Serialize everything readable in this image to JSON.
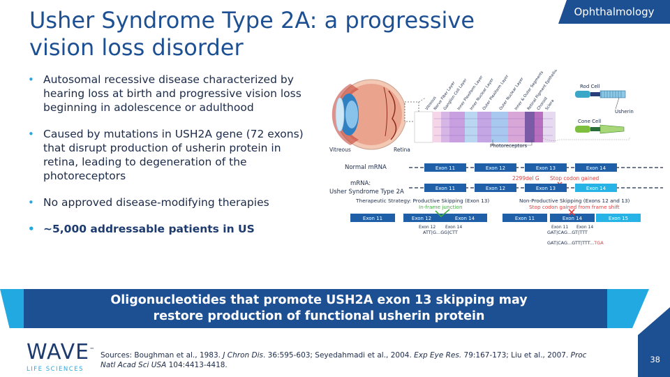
{
  "section_tag": "Ophthalmology",
  "title": "Usher Syndrome Type 2A: a progressive vision loss disorder",
  "bullets": [
    "Autosomal recessive disease characterized by hearing loss at birth and progressive vision loss beginning in adolescence or adulthood",
    "Caused by mutations in USH2A gene (72 exons) that disrupt production of usherin protein in retina, leading to degeneration of the photoreceptors",
    "No approved disease-modifying therapies",
    "~5,000 addressable patients in US"
  ],
  "diagram": {
    "eye_labels": {
      "vitreous": "Vitreous",
      "retina": "Retina"
    },
    "layer_labels": [
      "Vitreous",
      "Nerve Fiber Layer",
      "Ganglion Cell Layer",
      "Inner Plexiform Layer",
      "Inner Nuclear Layer",
      "Outer Plexiform Layer",
      "Outer Nuclear Layer",
      "Inner & Outer Segments",
      "Retinal Pigment Epithelium",
      "Choroid",
      "Sclera"
    ],
    "photoreceptors_label": "Photoreceptors",
    "rod_cell": "Rod Cell",
    "cone_cell": "Cone Cell",
    "usherin": "Usherin",
    "normal_mrna_label": "Normal mRNA",
    "normal_exons": [
      "Exon 11",
      "Exon 12",
      "Exon 13",
      "Exon 14"
    ],
    "mutation_label": "2299del G",
    "stop_codon_label": "Stop codon gained",
    "mrna_label_line1": "mRNA:",
    "mrna_label_line2": "Usher Syndrome Type 2A",
    "usher_exons": [
      "Exon 11",
      "Exon 12",
      "Exon 13",
      "Exon 14"
    ],
    "productive_title": "Therapeutic Strategy: Productive Skipping (Exon 13)",
    "productive_sub": "In-frame junction",
    "productive_exons": [
      "Exon 11",
      "Exon 12",
      "Exon 14"
    ],
    "productive_junction_labels": [
      "Exon 12",
      "Exon 14"
    ],
    "productive_seq": "ATT|G...GG|CTT",
    "nonproductive_title": "Non-Productive Skipping (Exons 12 and 13)",
    "nonproductive_sub": "Stop codon gained from frame shift",
    "nonproductive_exons": [
      "Exon 11",
      "Exon 14",
      "Exon 15"
    ],
    "nonproductive_junction_labels": [
      "Exon 11",
      "Exon 14"
    ],
    "nonproductive_seq1": "GAT|CAG...GT|TTT",
    "nonproductive_seq2_prefix": "GAT|CAG...GTT|TTT...",
    "nonproductive_seq2_stop": "TGA"
  },
  "banner_line1": "Oligonucleotides that promote USH2A exon 13 skipping may",
  "banner_line2": "restore production of functional usherin protein",
  "logo_word": "WAVE",
  "logo_tm": "™",
  "logo_sub": "LIFE SCIENCES",
  "sources_plain1": "Sources: Boughman et al., 1983. ",
  "sources_italic1": "J Chron Dis",
  "sources_plain2": ". 36:595-603; Seyedahmadi et al., 2004. ",
  "sources_italic2": "Exp Eye Res.",
  "sources_plain3": " 79:167-173; Liu et al., 2007. ",
  "sources_italic3": "Proc Natl Acad Sci USA",
  "sources_plain4": " 104:4413-4418.",
  "page_number": "38",
  "colors": {
    "navy": "#1d4f93",
    "accent": "#23a9e1",
    "exon_box": "#1f5fa8",
    "exon_light": "#27b3e6",
    "red": "#e23b3b",
    "green": "#3fae3f"
  }
}
